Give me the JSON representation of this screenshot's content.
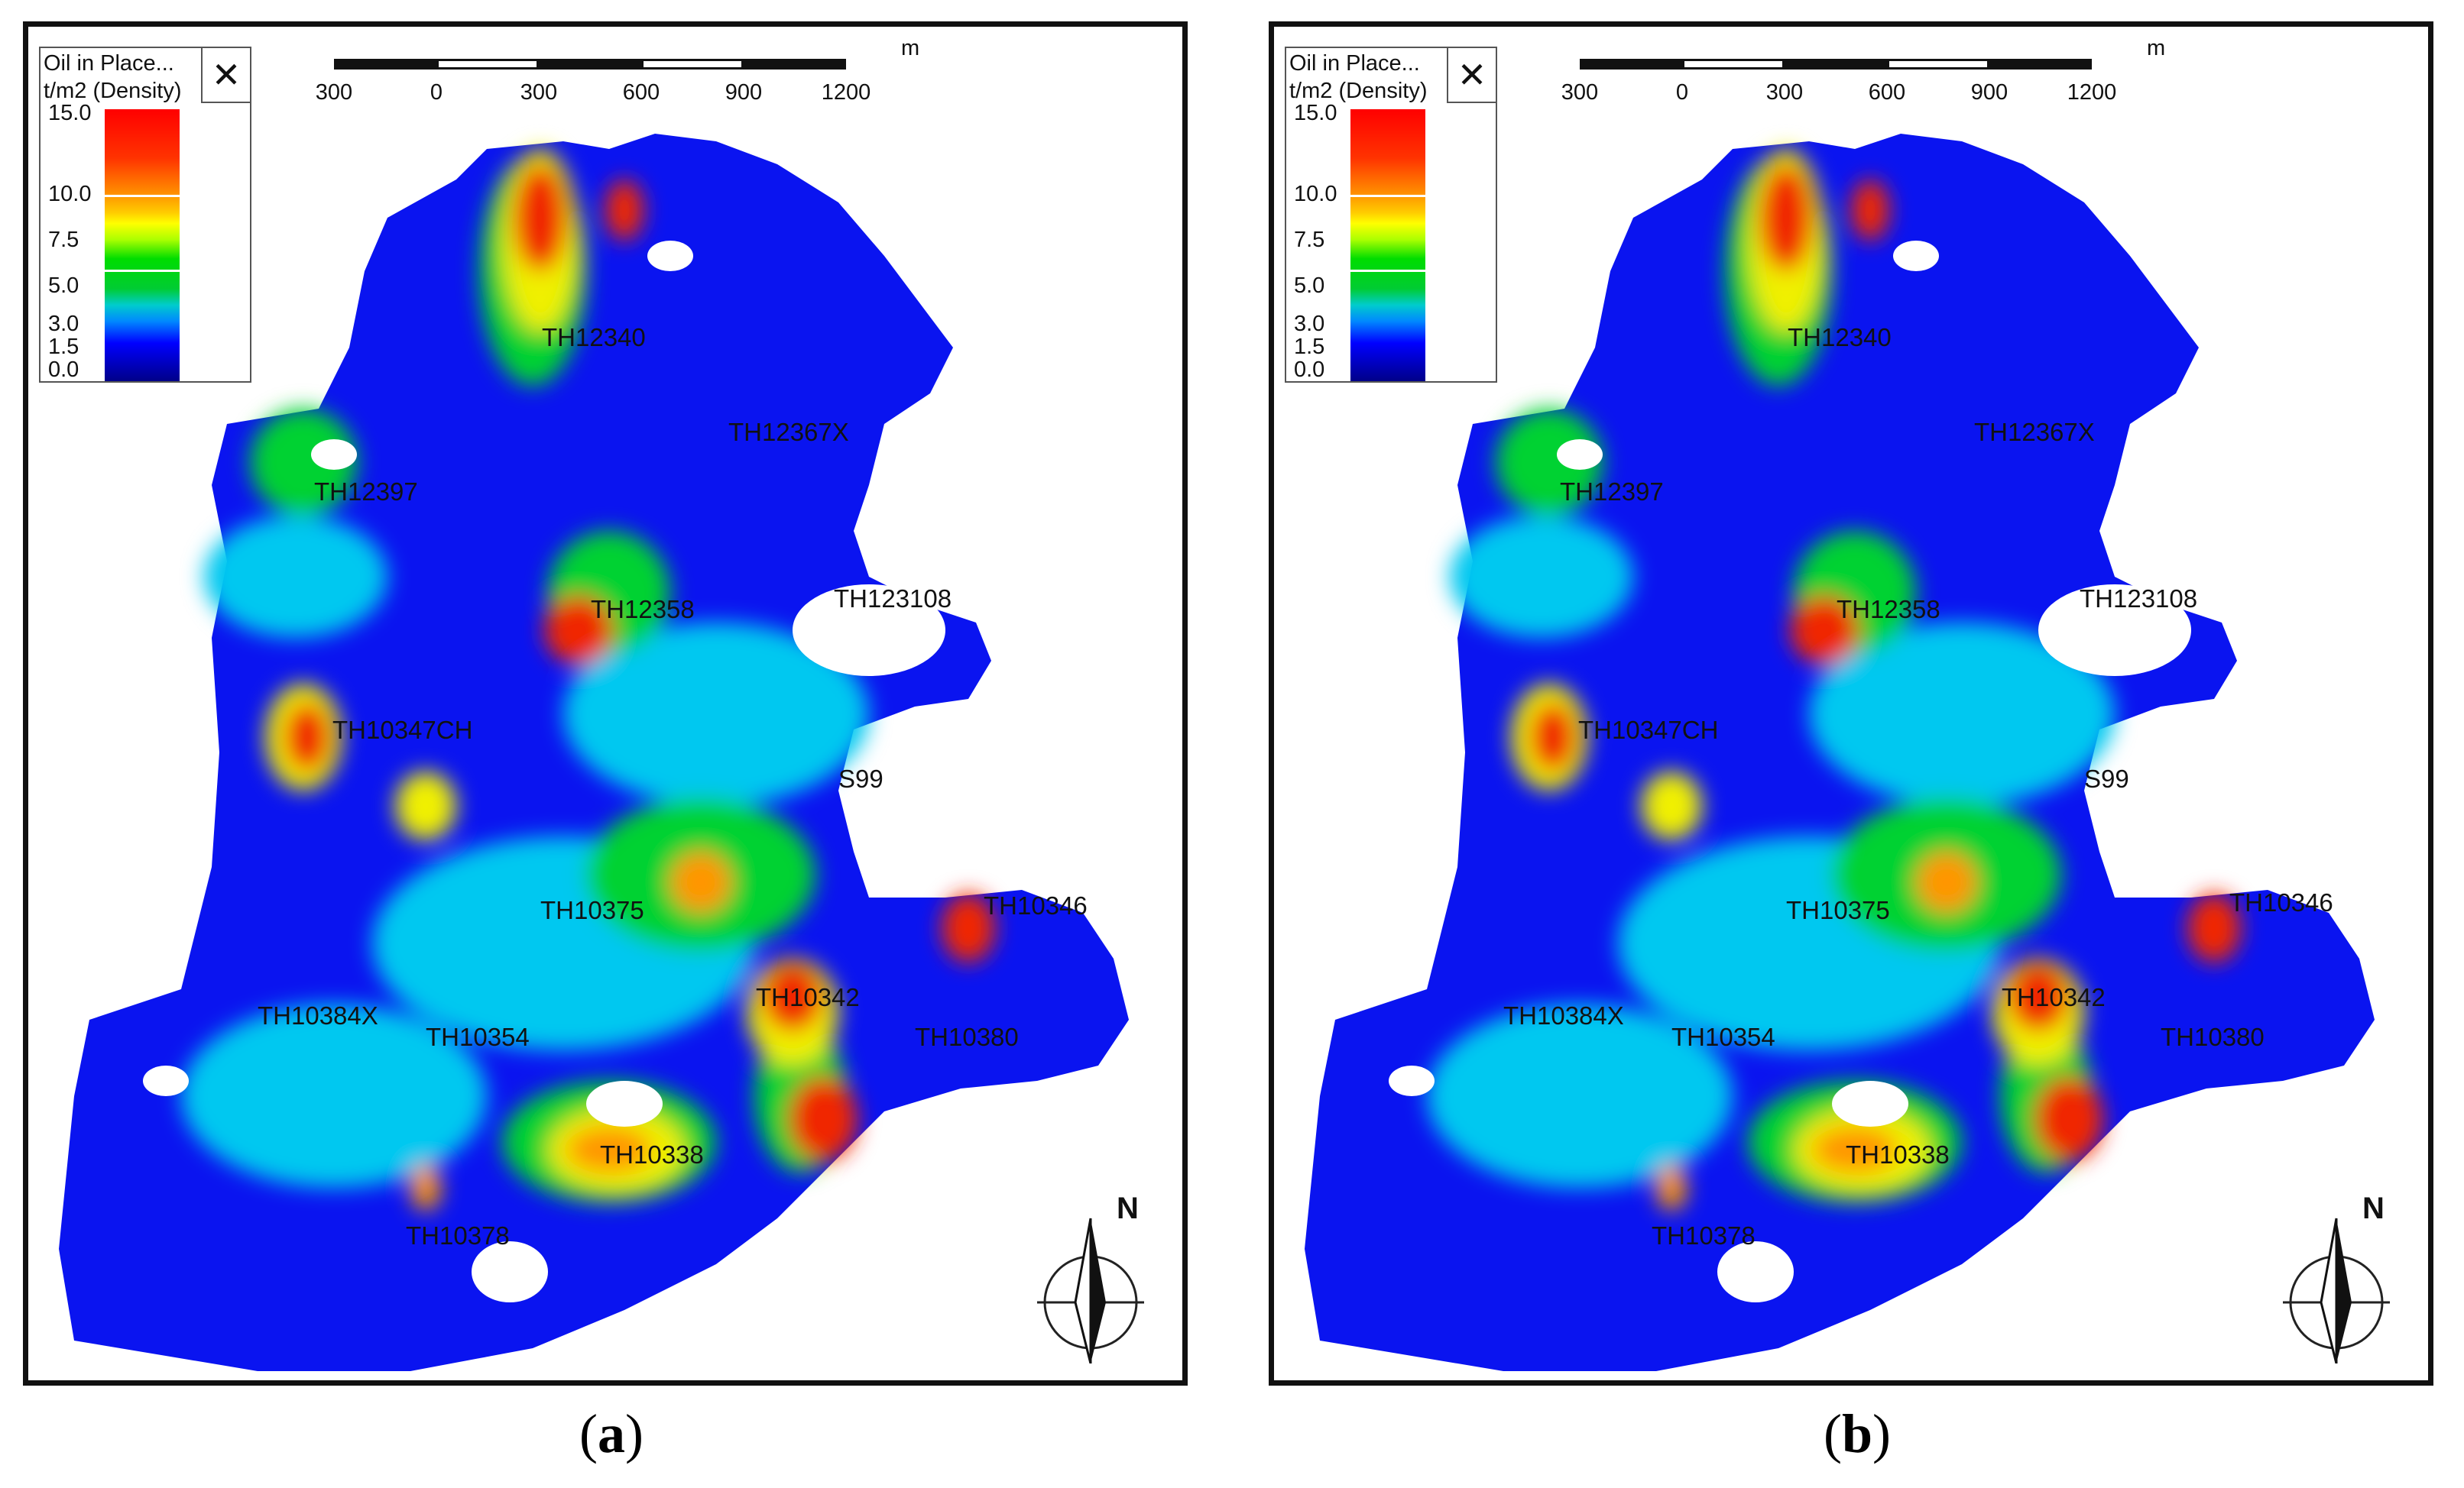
{
  "legend": {
    "title": "Oil in Place...",
    "subtitle": "t/m2 (Density)",
    "close_label": "✕",
    "ticks": [
      "15.0",
      "10.0",
      "7.5",
      "5.0",
      "3.0",
      "1.5",
      "0.0"
    ]
  },
  "scale": {
    "labels": [
      "300",
      "0",
      "300",
      "600",
      "900",
      "1200"
    ],
    "unit": "m"
  },
  "north_label": "N",
  "panels": [
    {
      "caption_open": "(",
      "caption_letter": "a",
      "caption_close": ")",
      "wells": [
        "TH12340",
        "TH12367X",
        "TH12397",
        "TH12358",
        "TH123108",
        "TH10347CH",
        "S99",
        "TH10375",
        "TH10346",
        "TH10342",
        "TH10384X",
        "TH10354",
        "TH10380",
        "TH10338",
        "TH10378"
      ]
    },
    {
      "caption_open": "(",
      "caption_letter": "b",
      "caption_close": ")",
      "wells": [
        "TH12340",
        "TH12367X",
        "TH12397",
        "TH12358",
        "TH123108",
        "TH10347CH",
        "S99",
        "TH10375",
        "TH10346",
        "TH10342",
        "TH10384X",
        "TH10354",
        "TH10380",
        "TH10338",
        "TH10378"
      ]
    }
  ],
  "colors": {
    "base": "#0a14f0",
    "cyan": "#00c8f0",
    "green": "#00d230",
    "yellow": "#f0f000",
    "orange": "#ff9600",
    "red": "#f02800"
  }
}
